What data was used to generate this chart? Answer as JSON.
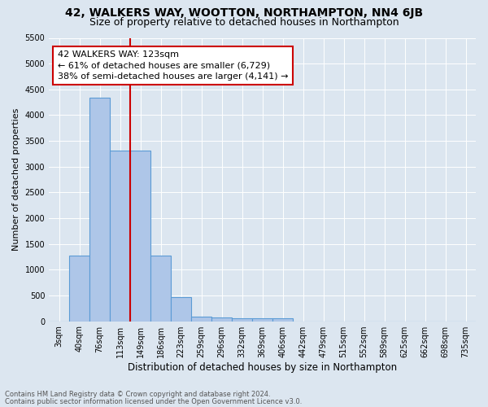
{
  "title": "42, WALKERS WAY, WOOTTON, NORTHAMPTON, NN4 6JB",
  "subtitle": "Size of property relative to detached houses in Northampton",
  "xlabel": "Distribution of detached houses by size in Northampton",
  "ylabel": "Number of detached properties",
  "footnote1": "Contains HM Land Registry data © Crown copyright and database right 2024.",
  "footnote2": "Contains public sector information licensed under the Open Government Licence v3.0.",
  "bar_labels": [
    "3sqm",
    "40sqm",
    "76sqm",
    "113sqm",
    "149sqm",
    "186sqm",
    "223sqm",
    "259sqm",
    "296sqm",
    "332sqm",
    "369sqm",
    "406sqm",
    "442sqm",
    "479sqm",
    "515sqm",
    "552sqm",
    "589sqm",
    "625sqm",
    "662sqm",
    "698sqm",
    "735sqm"
  ],
  "bar_values": [
    0,
    1270,
    4340,
    3310,
    3310,
    1280,
    475,
    95,
    80,
    55,
    55,
    55,
    0,
    0,
    0,
    0,
    0,
    0,
    0,
    0,
    0
  ],
  "bar_color": "#aec6e8",
  "bar_edge_color": "#5b9bd5",
  "property_line_x": 3.5,
  "property_line_color": "#cc0000",
  "annotation_text": "42 WALKERS WAY: 123sqm\n← 61% of detached houses are smaller (6,729)\n38% of semi-detached houses are larger (4,141) →",
  "annotation_box_color": "#ffffff",
  "annotation_box_edge_color": "#cc0000",
  "ylim": [
    0,
    5500
  ],
  "yticks": [
    0,
    500,
    1000,
    1500,
    2000,
    2500,
    3000,
    3500,
    4000,
    4500,
    5000,
    5500
  ],
  "background_color": "#dce6f0",
  "plot_bg_color": "#dce6f0",
  "title_fontsize": 10,
  "subtitle_fontsize": 9,
  "annotation_fontsize": 8,
  "tick_fontsize": 7,
  "ylabel_fontsize": 8,
  "xlabel_fontsize": 8.5
}
